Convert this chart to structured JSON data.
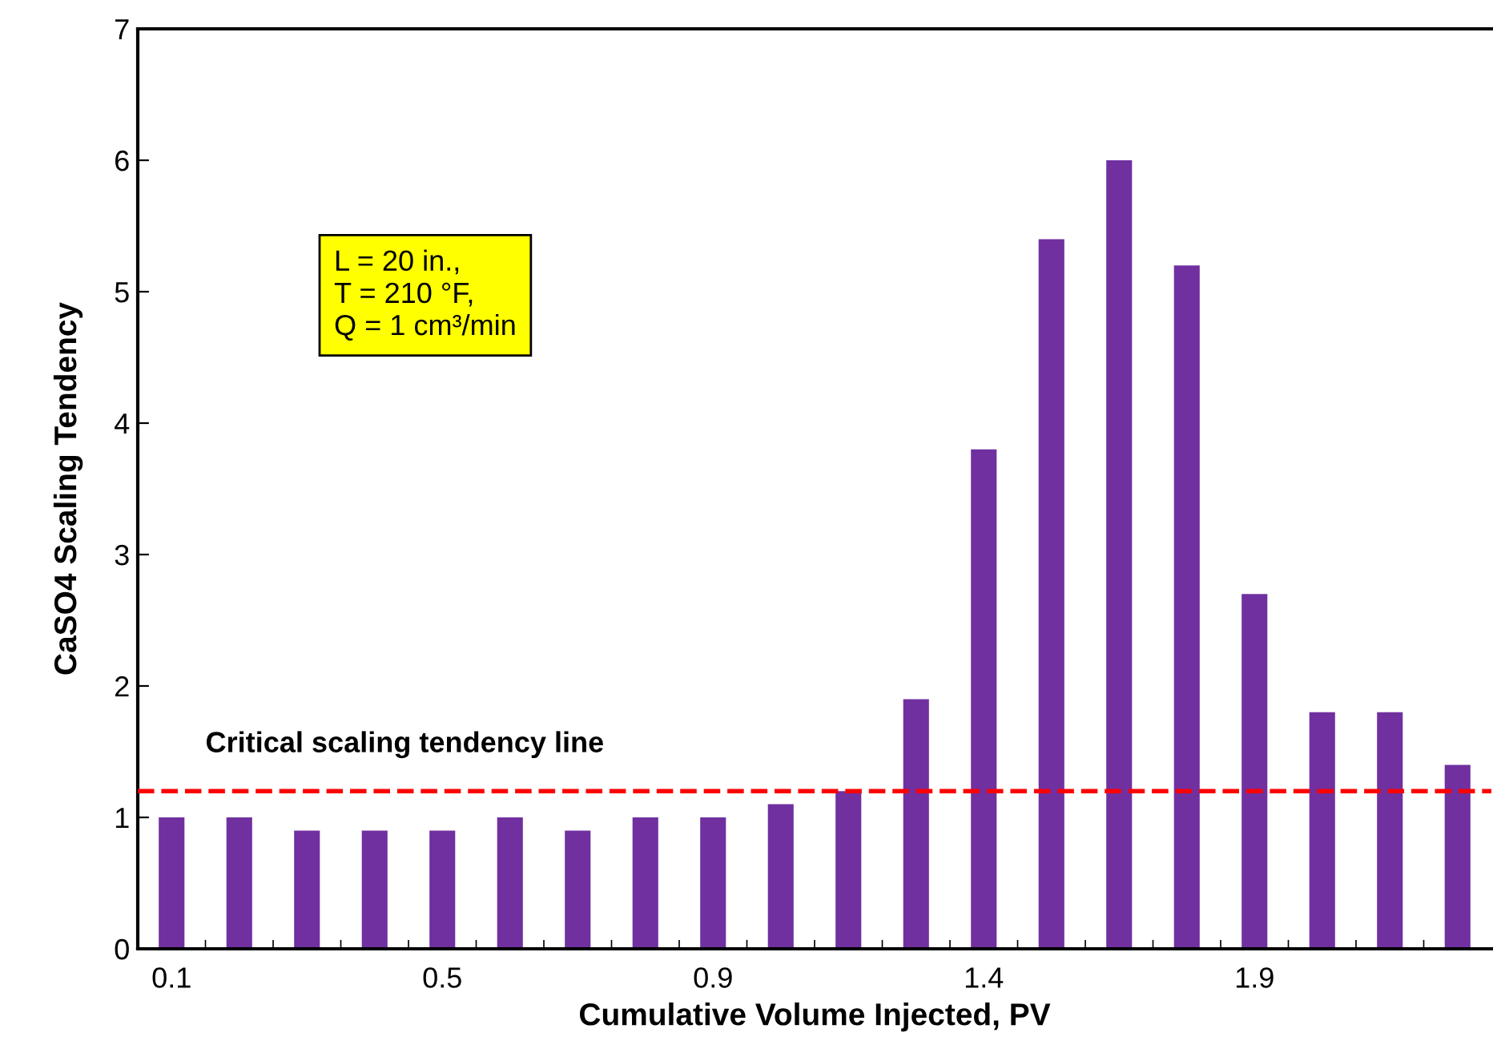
{
  "chart_data": {
    "type": "bar",
    "xlabel": "Cumulative Volume Injected, PV",
    "ylabel": "CaSO4 Scaling Tendency",
    "categories": [
      "0.1",
      null,
      null,
      null,
      "0.5",
      null,
      null,
      null,
      "0.9",
      null,
      null,
      null,
      "1.4",
      null,
      null,
      null,
      "1.9",
      null,
      null,
      null
    ],
    "values": [
      1,
      1,
      0.9,
      0.9,
      0.9,
      1,
      0.9,
      1,
      1,
      1.1,
      1.2,
      1.9,
      3.8,
      5.4,
      6,
      5.2,
      2.7,
      1.8,
      1.8,
      1.4
    ],
    "color": "#7030a0",
    "ylim": [
      0,
      7
    ],
    "yticks": [
      0,
      1,
      2,
      3,
      4,
      5,
      6,
      7
    ],
    "grid": false,
    "legend": false,
    "ref_lines": [
      {
        "axis": "y",
        "value": 1.2,
        "label": "Critical scaling tendency line",
        "color": "#ff0000",
        "line_style": "dashed"
      }
    ],
    "annotations": [
      "L = 20 in.,\nT = 210 °F,\nQ = 1 cm³/min"
    ]
  }
}
